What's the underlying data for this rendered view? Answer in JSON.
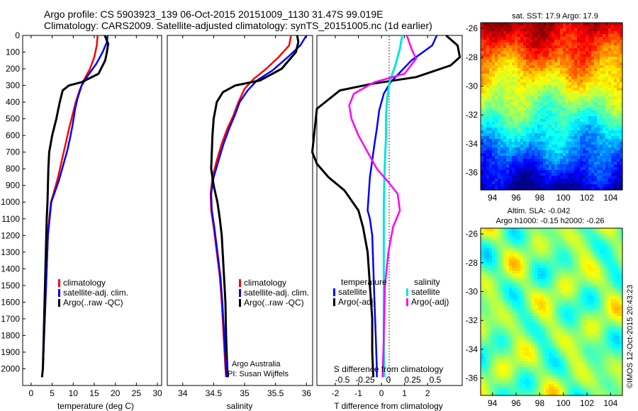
{
  "header": {
    "line1": "Argo profile: CS 5903923_139 06-Oct-2015 20151009_1130 31.47S 99.019E",
    "line2": "Climatology: CARS2009. Satellite-adjusted climatology: synTS_20151005.nc (1d earlier)"
  },
  "colors": {
    "climatology": "#ff0000",
    "satellite": "#0000ff",
    "argo": "#000000",
    "sat_salinity": "#00e5e5",
    "argo_salinity": "#ff00ff"
  },
  "footer": {
    "credit": "©IMOS 12-Oct-2015 20:43:23"
  },
  "chart_data": [
    {
      "type": "line",
      "id": "temperature",
      "xlabel": "temperature (deg C)",
      "xlim": [
        -2,
        31
      ],
      "ylim": [
        2100,
        0
      ],
      "xticks": [
        "0",
        "5",
        "10",
        "15",
        "20",
        "25",
        "30"
      ],
      "yticks": [
        "0",
        "100",
        "200",
        "300",
        "400",
        "500",
        "600",
        "700",
        "800",
        "900",
        "1000",
        "1100",
        "1200",
        "1300",
        "1400",
        "1500",
        "1600",
        "1700",
        "1800",
        "1900",
        "2000"
      ],
      "legend": [
        "climatology",
        "satellite-adj. clim.",
        "Argo(..raw -QC)"
      ],
      "series": [
        {
          "name": "climatology",
          "color": "#ff0000",
          "points": [
            [
              15.8,
              0
            ],
            [
              15.6,
              60
            ],
            [
              15.0,
              130
            ],
            [
              14.0,
              200
            ],
            [
              12.5,
              270
            ],
            [
              11.5,
              330
            ],
            [
              10.6,
              400
            ],
            [
              9.8,
              480
            ],
            [
              9.0,
              560
            ],
            [
              8.2,
              650
            ],
            [
              7.3,
              750
            ],
            [
              6.4,
              850
            ],
            [
              5.3,
              950
            ],
            [
              4.7,
              1000
            ],
            [
              4.3,
              1100
            ],
            [
              4.0,
              1200
            ],
            [
              3.7,
              1400
            ],
            [
              3.4,
              1600
            ],
            [
              3.1,
              1800
            ],
            [
              2.8,
              2000
            ],
            [
              2.6,
              2050
            ]
          ]
        },
        {
          "name": "satellite-adj. clim.",
          "color": "#0000ff",
          "points": [
            [
              18.2,
              0
            ],
            [
              18.0,
              40
            ],
            [
              17.0,
              100
            ],
            [
              15.5,
              170
            ],
            [
              13.5,
              240
            ],
            [
              12.0,
              300
            ],
            [
              11.0,
              380
            ],
            [
              10.4,
              450
            ],
            [
              9.9,
              530
            ],
            [
              9.3,
              610
            ],
            [
              8.6,
              690
            ],
            [
              7.6,
              780
            ],
            [
              6.6,
              870
            ],
            [
              5.5,
              950
            ],
            [
              4.8,
              1000
            ],
            [
              4.4,
              1100
            ],
            [
              4.0,
              1200
            ],
            [
              3.7,
              1400
            ],
            [
              3.4,
              1600
            ],
            [
              3.1,
              1800
            ],
            [
              2.8,
              2000
            ],
            [
              2.6,
              2050
            ]
          ]
        },
        {
          "name": "Argo(..raw -QC)",
          "color": "#000000",
          "points": [
            [
              17.5,
              0
            ],
            [
              18.3,
              50
            ],
            [
              18.0,
              100
            ],
            [
              17.6,
              150
            ],
            [
              16.0,
              230
            ],
            [
              12.0,
              280
            ],
            [
              9.0,
              300
            ],
            [
              7.5,
              330
            ],
            [
              6.8,
              400
            ],
            [
              6.0,
              500
            ],
            [
              5.0,
              600
            ],
            [
              4.3,
              700
            ],
            [
              4.1,
              800
            ],
            [
              4.0,
              900
            ],
            [
              3.9,
              1000
            ],
            [
              3.7,
              1100
            ],
            [
              3.6,
              1200
            ],
            [
              3.4,
              1400
            ],
            [
              3.2,
              1600
            ],
            [
              3.0,
              1800
            ],
            [
              2.8,
              2000
            ],
            [
              2.6,
              2050
            ]
          ]
        }
      ]
    },
    {
      "type": "line",
      "id": "salinity",
      "xlabel": "salinity",
      "xlim": [
        33.75,
        36.1
      ],
      "ylim": [
        2100,
        0
      ],
      "xticks": [
        "34",
        "34.5",
        "35",
        "35.5",
        "36"
      ],
      "legend": [
        "climatology",
        "satellite-adj. clim.",
        "Argo(..raw -QC)"
      ],
      "annotations": [
        "Argo Australia",
        "PI: Susan Wijffels"
      ],
      "series": [
        {
          "name": "climatology",
          "color": "#ff0000",
          "points": [
            [
              35.75,
              0
            ],
            [
              35.72,
              60
            ],
            [
              35.55,
              130
            ],
            [
              35.35,
              200
            ],
            [
              35.15,
              260
            ],
            [
              35.0,
              320
            ],
            [
              34.9,
              400
            ],
            [
              34.82,
              480
            ],
            [
              34.72,
              560
            ],
            [
              34.63,
              650
            ],
            [
              34.55,
              750
            ],
            [
              34.48,
              850
            ],
            [
              34.45,
              950
            ],
            [
              34.46,
              1050
            ],
            [
              34.5,
              1150
            ],
            [
              34.55,
              1300
            ],
            [
              34.6,
              1450
            ],
            [
              34.63,
              1600
            ],
            [
              34.66,
              1800
            ],
            [
              34.69,
              2000
            ],
            [
              34.7,
              2050
            ]
          ]
        },
        {
          "name": "satellite-adj. clim.",
          "color": "#0000ff",
          "points": [
            [
              36.0,
              0
            ],
            [
              35.9,
              60
            ],
            [
              35.7,
              130
            ],
            [
              35.45,
              210
            ],
            [
              35.2,
              270
            ],
            [
              35.05,
              330
            ],
            [
              34.92,
              400
            ],
            [
              34.84,
              480
            ],
            [
              34.75,
              560
            ],
            [
              34.66,
              650
            ],
            [
              34.58,
              750
            ],
            [
              34.5,
              850
            ],
            [
              34.46,
              950
            ],
            [
              34.47,
              1050
            ],
            [
              34.51,
              1150
            ],
            [
              34.56,
              1300
            ],
            [
              34.61,
              1450
            ],
            [
              34.64,
              1600
            ],
            [
              34.67,
              1800
            ],
            [
              34.7,
              2000
            ],
            [
              34.71,
              2050
            ]
          ]
        },
        {
          "name": "Argo(..raw -QC)",
          "color": "#000000",
          "points": [
            [
              35.85,
              0
            ],
            [
              35.87,
              40
            ],
            [
              35.83,
              100
            ],
            [
              35.6,
              200
            ],
            [
              35.25,
              270
            ],
            [
              34.85,
              300
            ],
            [
              34.65,
              340
            ],
            [
              34.55,
              400
            ],
            [
              34.5,
              500
            ],
            [
              34.48,
              600
            ],
            [
              34.47,
              700
            ],
            [
              34.46,
              800
            ],
            [
              34.5,
              900
            ],
            [
              34.56,
              1000
            ],
            [
              34.6,
              1100
            ],
            [
              34.63,
              1200
            ],
            [
              34.66,
              1400
            ],
            [
              34.69,
              1600
            ],
            [
              34.7,
              1800
            ],
            [
              34.72,
              2000
            ],
            [
              34.73,
              2050
            ]
          ]
        }
      ]
    },
    {
      "type": "line",
      "id": "difference",
      "xlabel": "T difference from climatology",
      "x2label": "S difference from climatology",
      "xlim": [
        -2.8,
        3.5
      ],
      "ylim": [
        2100,
        0
      ],
      "xticks": [
        "-2",
        "-1",
        "0",
        "1",
        "2"
      ],
      "s_ticks": [
        "-0.5",
        "-0.25",
        "0",
        "0.25",
        "0.5"
      ],
      "legend": {
        "temperature_title": "temperature",
        "salinity_title": "salinity",
        "items": [
          "satellite",
          "Argo(-adj)",
          "satellite",
          "Argo(-adj)"
        ]
      },
      "series": [
        {
          "name": "temperature satellite",
          "color": "#0000ff",
          "points": [
            [
              2.4,
              0
            ],
            [
              2.2,
              60
            ],
            [
              1.3,
              150
            ],
            [
              0.4,
              280
            ],
            [
              0.1,
              350
            ],
            [
              -0.1,
              450
            ],
            [
              -0.2,
              560
            ],
            [
              -0.3,
              650
            ],
            [
              -0.4,
              750
            ],
            [
              -0.5,
              850
            ],
            [
              -0.55,
              950
            ],
            [
              -0.6,
              1050
            ],
            [
              -0.5,
              1100
            ],
            [
              -0.4,
              1200
            ],
            [
              -0.35,
              1400
            ],
            [
              -0.3,
              1600
            ],
            [
              -0.25,
              1800
            ],
            [
              -0.2,
              2000
            ],
            [
              -0.2,
              2050
            ]
          ]
        },
        {
          "name": "temperature Argo(-adj)",
          "color": "#000000",
          "points": [
            [
              2.8,
              0
            ],
            [
              3.3,
              60
            ],
            [
              3.4,
              130
            ],
            [
              3.0,
              180
            ],
            [
              1.5,
              250
            ],
            [
              -0.4,
              290
            ],
            [
              -1.8,
              330
            ],
            [
              -2.8,
              440
            ],
            [
              -3.0,
              700
            ],
            [
              -2.8,
              770
            ],
            [
              -2.3,
              850
            ],
            [
              -1.6,
              930
            ],
            [
              -1.0,
              1050
            ],
            [
              -0.8,
              1150
            ],
            [
              -0.6,
              1300
            ],
            [
              -0.5,
              1500
            ],
            [
              -0.4,
              1700
            ],
            [
              -0.4,
              1900
            ],
            [
              -0.35,
              2050
            ]
          ]
        },
        {
          "name": "salinity satellite",
          "color": "#00e5e5",
          "points": [
            [
              0.9,
              0
            ],
            [
              0.8,
              80
            ],
            [
              0.6,
              180
            ],
            [
              0.35,
              280
            ],
            [
              0.25,
              380
            ],
            [
              0.2,
              480
            ],
            [
              0.2,
              600
            ],
            [
              0.15,
              750
            ],
            [
              0.12,
              900
            ],
            [
              0.1,
              1050
            ],
            [
              0.1,
              1200
            ],
            [
              0.1,
              1500
            ],
            [
              0.1,
              1800
            ],
            [
              0.12,
              2050
            ]
          ]
        },
        {
          "name": "salinity Argo(-adj)",
          "color": "#ff00ff",
          "points": [
            [
              1.1,
              0
            ],
            [
              1.3,
              80
            ],
            [
              1.5,
              140
            ],
            [
              1.0,
              230
            ],
            [
              -0.3,
              280
            ],
            [
              -1.2,
              350
            ],
            [
              -1.4,
              420
            ],
            [
              -1.3,
              500
            ],
            [
              -1.0,
              600
            ],
            [
              -0.6,
              700
            ],
            [
              -0.2,
              800
            ],
            [
              0.3,
              880
            ],
            [
              0.7,
              950
            ],
            [
              0.8,
              1050
            ],
            [
              0.5,
              1150
            ],
            [
              0.3,
              1300
            ],
            [
              0.15,
              1500
            ],
            [
              0.1,
              1800
            ],
            [
              0.05,
              2050
            ]
          ]
        }
      ]
    },
    {
      "type": "heatmap",
      "id": "sst",
      "title": "sat. SST: 17.9 Argo: 17.9",
      "xticks": [
        "94",
        "96",
        "98",
        "100",
        "102",
        "104"
      ],
      "yticks": [
        "-26",
        "-28",
        "-30",
        "-32",
        "-34",
        "-36"
      ],
      "xlim": [
        93,
        105
      ],
      "ylim": [
        -37.2,
        -25.6
      ],
      "colorscale": "jet",
      "marker": {
        "lon": 99.019,
        "lat": -31.47
      }
    },
    {
      "type": "heatmap",
      "id": "sla",
      "title": "Altim. SLA: -0.042",
      "subtitle": "Argo h1000: -0.15 h2000: -0.26",
      "xticks": [
        "94",
        "96",
        "98",
        "100",
        "102",
        "104"
      ],
      "yticks": [
        "-26",
        "-28",
        "-30",
        "-32",
        "-34",
        "-36"
      ],
      "xlim": [
        93,
        105
      ],
      "ylim": [
        -37.2,
        -25.6
      ],
      "colorscale": "jet",
      "marker": {
        "lon": 99.019,
        "lat": -31.47
      }
    }
  ]
}
